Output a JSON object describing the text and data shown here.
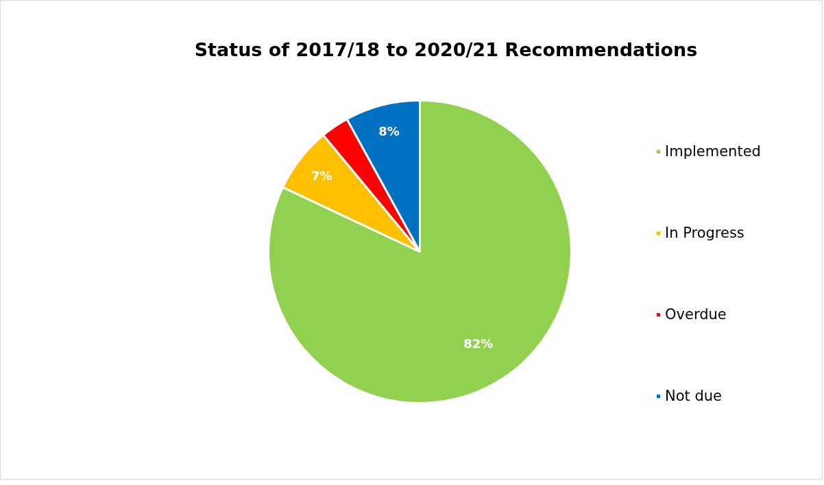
{
  "chart_data": {
    "type": "pie",
    "title": "Status of 2017/18 to 2020/21 Recommendations",
    "categories": [
      "Implemented",
      "In Progress",
      "Overdue",
      "Not due"
    ],
    "values": [
      82,
      7,
      3,
      8
    ],
    "colors": [
      "#92d050",
      "#ffc000",
      "#ff0000",
      "#0070c0"
    ],
    "value_labels": [
      "82%",
      "7%",
      null,
      "8%"
    ],
    "legend": "right"
  }
}
